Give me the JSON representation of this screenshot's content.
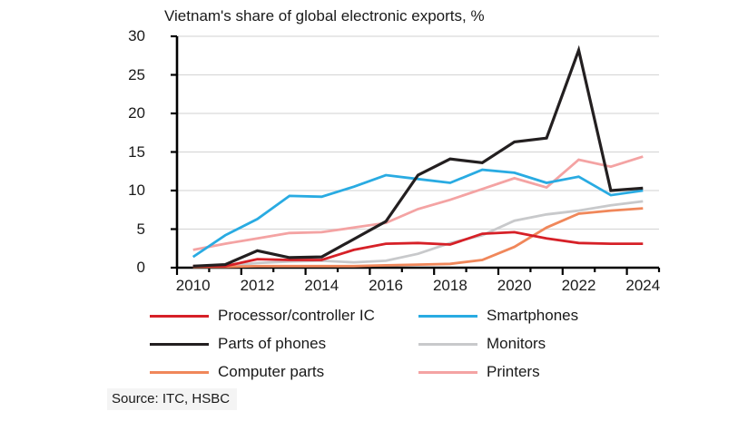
{
  "page": {
    "background": "#ffffff"
  },
  "source": "Source: ITC, HSBC",
  "chart_data": {
    "type": "line",
    "title": "Vietnam's share of global electronic exports, %",
    "xlabel": "",
    "ylabel": "",
    "ylim": [
      0,
      30
    ],
    "grid": true,
    "legend_position": "bottom",
    "axis_color": "#000000",
    "grid_color": "#d9d9d9",
    "x": [
      2010,
      2011,
      2012,
      2013,
      2014,
      2015,
      2016,
      2017,
      2018,
      2019,
      2020,
      2021,
      2022,
      2023,
      2024
    ],
    "x_tick_labels": [
      "2010",
      "2012",
      "2014",
      "2016",
      "2018",
      "2020",
      "2022",
      "2024"
    ],
    "y_ticks": [
      0,
      5,
      10,
      15,
      20,
      25,
      30
    ],
    "series": [
      {
        "name": "Processor/controller IC",
        "color": "#d62027",
        "values": [
          0.2,
          0.2,
          1.1,
          1.0,
          1.0,
          2.3,
          3.1,
          3.2,
          3.0,
          4.4,
          4.6,
          3.8,
          3.2,
          3.1,
          3.1
        ]
      },
      {
        "name": "Smartphones",
        "color": "#29abe2",
        "values": [
          1.4,
          4.2,
          6.3,
          9.3,
          9.2,
          10.5,
          12.0,
          11.5,
          11.0,
          12.7,
          12.3,
          11.0,
          11.8,
          9.4,
          10.0
        ]
      },
      {
        "name": "Parts of phones",
        "color": "#231f20",
        "values": [
          0.2,
          0.4,
          2.2,
          1.3,
          1.4,
          3.7,
          6.0,
          12.0,
          14.1,
          13.6,
          16.3,
          16.8,
          28.2,
          10.0,
          10.3
        ]
      },
      {
        "name": "Monitors",
        "color": "#c8c9cb",
        "values": [
          0.1,
          0.2,
          0.6,
          0.8,
          0.9,
          0.7,
          0.9,
          1.8,
          3.2,
          4.2,
          6.1,
          6.9,
          7.4,
          8.1,
          8.6
        ]
      },
      {
        "name": "Computer parts",
        "color": "#f0875a",
        "values": [
          0.1,
          0.1,
          0.2,
          0.2,
          0.2,
          0.2,
          0.3,
          0.4,
          0.5,
          1.0,
          2.7,
          5.2,
          7.0,
          7.4,
          7.7
        ]
      },
      {
        "name": "Printers",
        "color": "#f4a3a3",
        "values": [
          2.3,
          3.1,
          3.8,
          4.5,
          4.6,
          5.2,
          5.8,
          7.6,
          8.8,
          10.2,
          11.6,
          10.4,
          14.0,
          13.1,
          14.4
        ]
      }
    ],
    "source": "Source: ITC, HSBC"
  }
}
